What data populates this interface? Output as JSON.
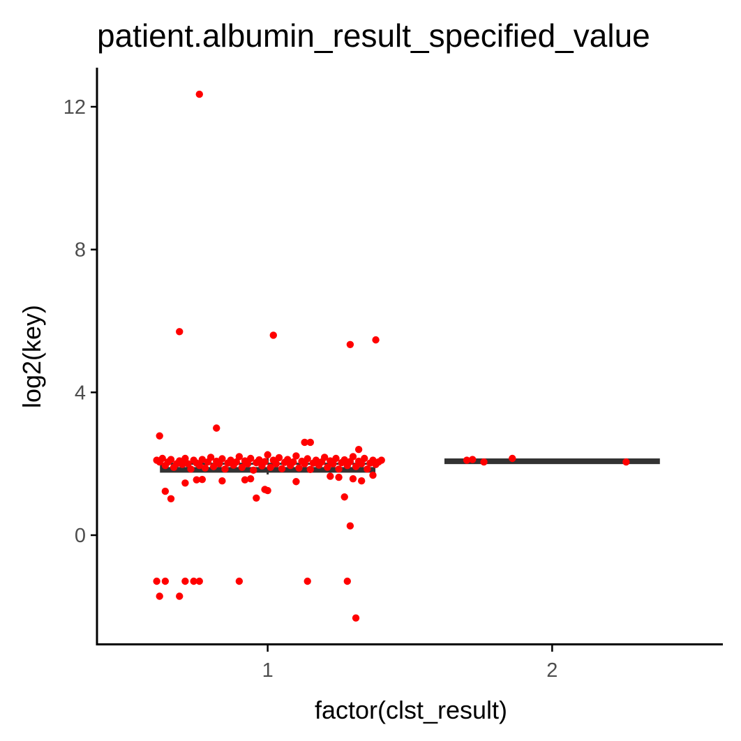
{
  "chart_data": {
    "type": "scatter",
    "title": "patient.albumin_result_specified_value",
    "xlabel": "factor(clst_result)",
    "ylabel": "log2(key)",
    "categories": [
      "1",
      "2"
    ],
    "y_ticks": [
      "0",
      "4",
      "8",
      "12"
    ],
    "ylim": [
      -3,
      13.2
    ],
    "grid": false,
    "colors": {
      "points": "#ff0000",
      "box": "#333333"
    },
    "boxplots": [
      {
        "category": "1",
        "q1": 1.78,
        "median": 1.85,
        "q3": 2.0,
        "whisker_low": 1.7,
        "whisker_high": 2.35
      },
      {
        "category": "2",
        "q1": 2.02,
        "median": 2.07,
        "q3": 2.12,
        "whisker_low": 2.02,
        "whisker_high": 2.12
      }
    ],
    "series": [
      {
        "category": "1",
        "points": [
          [
            0.61,
            -1.29
          ],
          [
            0.62,
            -1.71
          ],
          [
            0.64,
            -1.29
          ],
          [
            0.69,
            -1.71
          ],
          [
            0.71,
            -1.29
          ],
          [
            0.74,
            -1.29
          ],
          [
            0.76,
            -1.29
          ],
          [
            0.9,
            -1.29
          ],
          [
            1.14,
            -1.29
          ],
          [
            1.28,
            -1.29
          ],
          [
            1.31,
            -2.32
          ],
          [
            1.29,
            0.26
          ],
          [
            0.76,
            12.35
          ],
          [
            0.69,
            5.7
          ],
          [
            1.02,
            5.6
          ],
          [
            1.29,
            5.34
          ],
          [
            1.38,
            5.47
          ],
          [
            0.82,
            3.0
          ],
          [
            0.62,
            2.78
          ],
          [
            1.13,
            2.6
          ],
          [
            1.15,
            2.6
          ],
          [
            1.32,
            2.4
          ],
          [
            0.64,
            1.23
          ],
          [
            0.66,
            1.02
          ],
          [
            0.96,
            1.04
          ],
          [
            1.0,
            1.25
          ],
          [
            0.99,
            1.28
          ],
          [
            1.27,
            1.07
          ],
          [
            0.71,
            1.46
          ],
          [
            0.75,
            1.55
          ],
          [
            0.77,
            1.56
          ],
          [
            0.84,
            1.52
          ],
          [
            0.92,
            1.55
          ],
          [
            0.94,
            1.58
          ],
          [
            1.1,
            1.5
          ],
          [
            1.22,
            1.65
          ],
          [
            1.25,
            1.62
          ],
          [
            1.3,
            1.58
          ],
          [
            1.33,
            1.52
          ],
          [
            1.37,
            1.68
          ],
          [
            0.61,
            2.1
          ],
          [
            0.62,
            2.05
          ],
          [
            0.63,
            2.15
          ],
          [
            0.64,
            1.95
          ],
          [
            0.65,
            2.05
          ],
          [
            0.66,
            2.12
          ],
          [
            0.67,
            1.9
          ],
          [
            0.68,
            2.0
          ],
          [
            0.69,
            2.08
          ],
          [
            0.7,
            1.98
          ],
          [
            0.71,
            2.15
          ],
          [
            0.72,
            2.0
          ],
          [
            0.73,
            1.85
          ],
          [
            0.74,
            2.1
          ],
          [
            0.75,
            2.02
          ],
          [
            0.76,
            1.95
          ],
          [
            0.77,
            2.12
          ],
          [
            0.78,
            1.88
          ],
          [
            0.79,
            2.05
          ],
          [
            0.8,
            2.18
          ],
          [
            0.81,
            1.92
          ],
          [
            0.82,
            2.07
          ],
          [
            0.83,
            2.0
          ],
          [
            0.84,
            2.14
          ],
          [
            0.85,
            1.85
          ],
          [
            0.86,
            2.02
          ],
          [
            0.87,
            2.1
          ],
          [
            0.88,
            1.96
          ],
          [
            0.89,
            2.05
          ],
          [
            0.9,
            2.2
          ],
          [
            0.91,
            1.9
          ],
          [
            0.92,
            2.08
          ],
          [
            0.93,
            2.0
          ],
          [
            0.94,
            2.15
          ],
          [
            0.95,
            1.82
          ],
          [
            0.96,
            2.03
          ],
          [
            0.97,
            2.11
          ],
          [
            0.98,
            1.94
          ],
          [
            0.99,
            2.06
          ],
          [
            1.0,
            2.25
          ],
          [
            1.01,
            1.9
          ],
          [
            1.02,
            2.1
          ],
          [
            1.03,
            2.0
          ],
          [
            1.04,
            2.17
          ],
          [
            1.05,
            1.86
          ],
          [
            1.06,
            2.04
          ],
          [
            1.07,
            2.12
          ],
          [
            1.08,
            1.95
          ],
          [
            1.09,
            2.05
          ],
          [
            1.1,
            2.22
          ],
          [
            1.11,
            1.88
          ],
          [
            1.12,
            2.07
          ],
          [
            1.13,
            2.0
          ],
          [
            1.14,
            2.14
          ],
          [
            1.15,
            1.84
          ],
          [
            1.16,
            2.02
          ],
          [
            1.17,
            2.1
          ],
          [
            1.18,
            1.96
          ],
          [
            1.19,
            2.05
          ],
          [
            1.2,
            2.18
          ],
          [
            1.21,
            1.9
          ],
          [
            1.22,
            2.08
          ],
          [
            1.23,
            2.0
          ],
          [
            1.24,
            2.15
          ],
          [
            1.25,
            1.85
          ],
          [
            1.26,
            2.03
          ],
          [
            1.27,
            2.11
          ],
          [
            1.28,
            1.95
          ],
          [
            1.29,
            2.06
          ],
          [
            1.3,
            2.2
          ],
          [
            1.31,
            1.92
          ],
          [
            1.32,
            2.07
          ],
          [
            1.33,
            2.0
          ],
          [
            1.34,
            2.15
          ],
          [
            1.35,
            1.85
          ],
          [
            1.36,
            2.02
          ],
          [
            1.37,
            2.1
          ],
          [
            1.38,
            1.98
          ],
          [
            1.39,
            2.05
          ],
          [
            1.4,
            2.1
          ]
        ]
      },
      {
        "category": "2",
        "points": [
          [
            1.7,
            2.1
          ],
          [
            1.72,
            2.12
          ],
          [
            1.76,
            2.05
          ],
          [
            1.86,
            2.15
          ],
          [
            2.26,
            2.05
          ]
        ]
      }
    ]
  }
}
